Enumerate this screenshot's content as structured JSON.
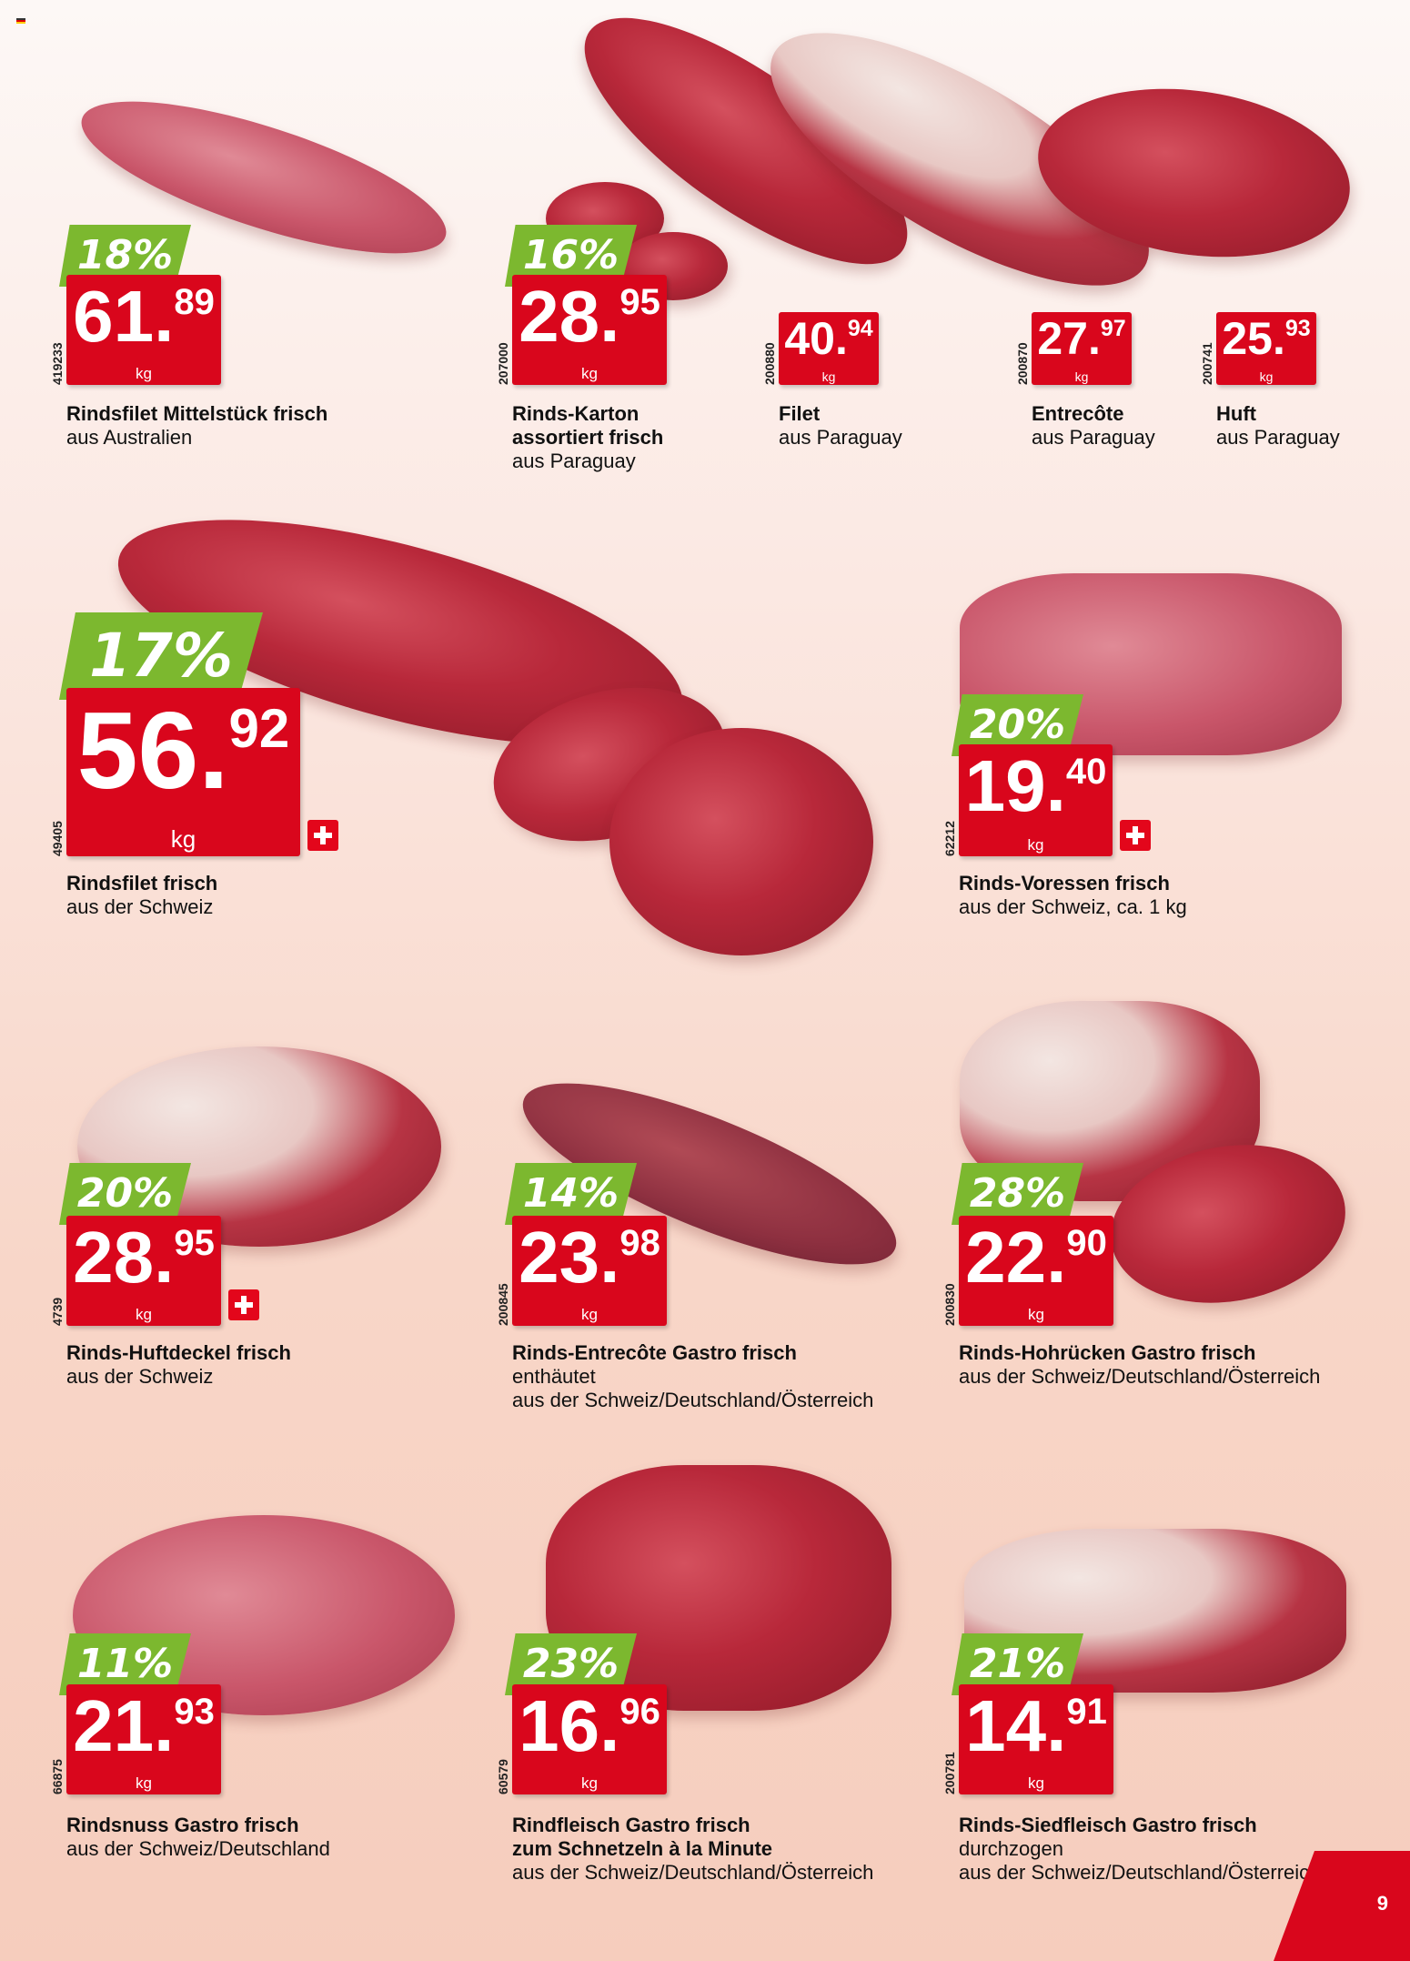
{
  "page_number": "9",
  "colors": {
    "price_red": "#d9061c",
    "discount_green": "#7cb82f"
  },
  "products": [
    {
      "discount": "18%",
      "price_int": "61",
      "price_dec": "89",
      "unit": "kg",
      "code": "419233",
      "title": [
        "Rindsfilet Mittelstück frisch"
      ],
      "lines": [
        "aus Australien"
      ],
      "swiss": false
    },
    {
      "discount": "16%",
      "price_int": "28",
      "price_dec": "95",
      "unit": "kg",
      "code": "207000",
      "title": [
        "Rinds-Karton",
        "assortiert frisch"
      ],
      "lines": [
        "aus Paraguay"
      ],
      "swiss": false
    },
    {
      "discount": "",
      "price_int": "40",
      "price_dec": "94",
      "unit": "kg",
      "code": "200880",
      "title": [
        "Filet"
      ],
      "lines": [
        "aus Paraguay"
      ],
      "swiss": false
    },
    {
      "discount": "",
      "price_int": "27",
      "price_dec": "97",
      "unit": "kg",
      "code": "200870",
      "title": [
        "Entrecôte"
      ],
      "lines": [
        "aus Paraguay"
      ],
      "swiss": false
    },
    {
      "discount": "",
      "price_int": "25",
      "price_dec": "93",
      "unit": "kg",
      "code": "200741",
      "title": [
        "Huft"
      ],
      "lines": [
        "aus Paraguay"
      ],
      "swiss": false
    },
    {
      "discount": "17%",
      "price_int": "56",
      "price_dec": "92",
      "unit": "kg",
      "code": "49405",
      "title": [
        "Rindsfilet frisch"
      ],
      "lines": [
        "aus der Schweiz"
      ],
      "swiss": true
    },
    {
      "discount": "20%",
      "price_int": "19",
      "price_dec": "40",
      "unit": "kg",
      "code": "62212",
      "title": [
        "Rinds-Voressen frisch"
      ],
      "lines": [
        "aus der Schweiz, ca. 1 kg"
      ],
      "swiss": true
    },
    {
      "discount": "20%",
      "price_int": "28",
      "price_dec": "95",
      "unit": "kg",
      "code": "4739",
      "title": [
        "Rinds-Huftdeckel frisch"
      ],
      "lines": [
        "aus der Schweiz"
      ],
      "swiss": true
    },
    {
      "discount": "14%",
      "price_int": "23",
      "price_dec": "98",
      "unit": "kg",
      "code": "200845",
      "title": [
        "Rinds-Entrecôte Gastro frisch"
      ],
      "lines": [
        "enthäutet",
        "aus der Schweiz/Deutschland/Österreich"
      ],
      "swiss": false
    },
    {
      "discount": "28%",
      "price_int": "22",
      "price_dec": "90",
      "unit": "kg",
      "code": "200830",
      "title": [
        "Rinds-Hohrücken Gastro frisch"
      ],
      "lines": [
        "aus der Schweiz/Deutschland/Österreich"
      ],
      "swiss": false
    },
    {
      "discount": "11%",
      "price_int": "21",
      "price_dec": "93",
      "unit": "kg",
      "code": "66875",
      "title": [
        "Rindsnuss Gastro frisch"
      ],
      "lines": [
        "aus der Schweiz/Deutschland"
      ],
      "swiss": false
    },
    {
      "discount": "23%",
      "price_int": "16",
      "price_dec": "96",
      "unit": "kg",
      "code": "60579",
      "title": [
        "Rindfleisch Gastro frisch",
        "zum Schnetzeln à la Minute"
      ],
      "lines": [
        "aus der Schweiz/Deutschland/Österreich"
      ],
      "swiss": false
    },
    {
      "discount": "21%",
      "price_int": "14",
      "price_dec": "91",
      "unit": "kg",
      "code": "200781",
      "title": [
        "Rinds-Siedfleisch Gastro frisch"
      ],
      "lines": [
        "durchzogen",
        "aus der Schweiz/Deutschland/Österreich"
      ],
      "swiss": false
    }
  ]
}
